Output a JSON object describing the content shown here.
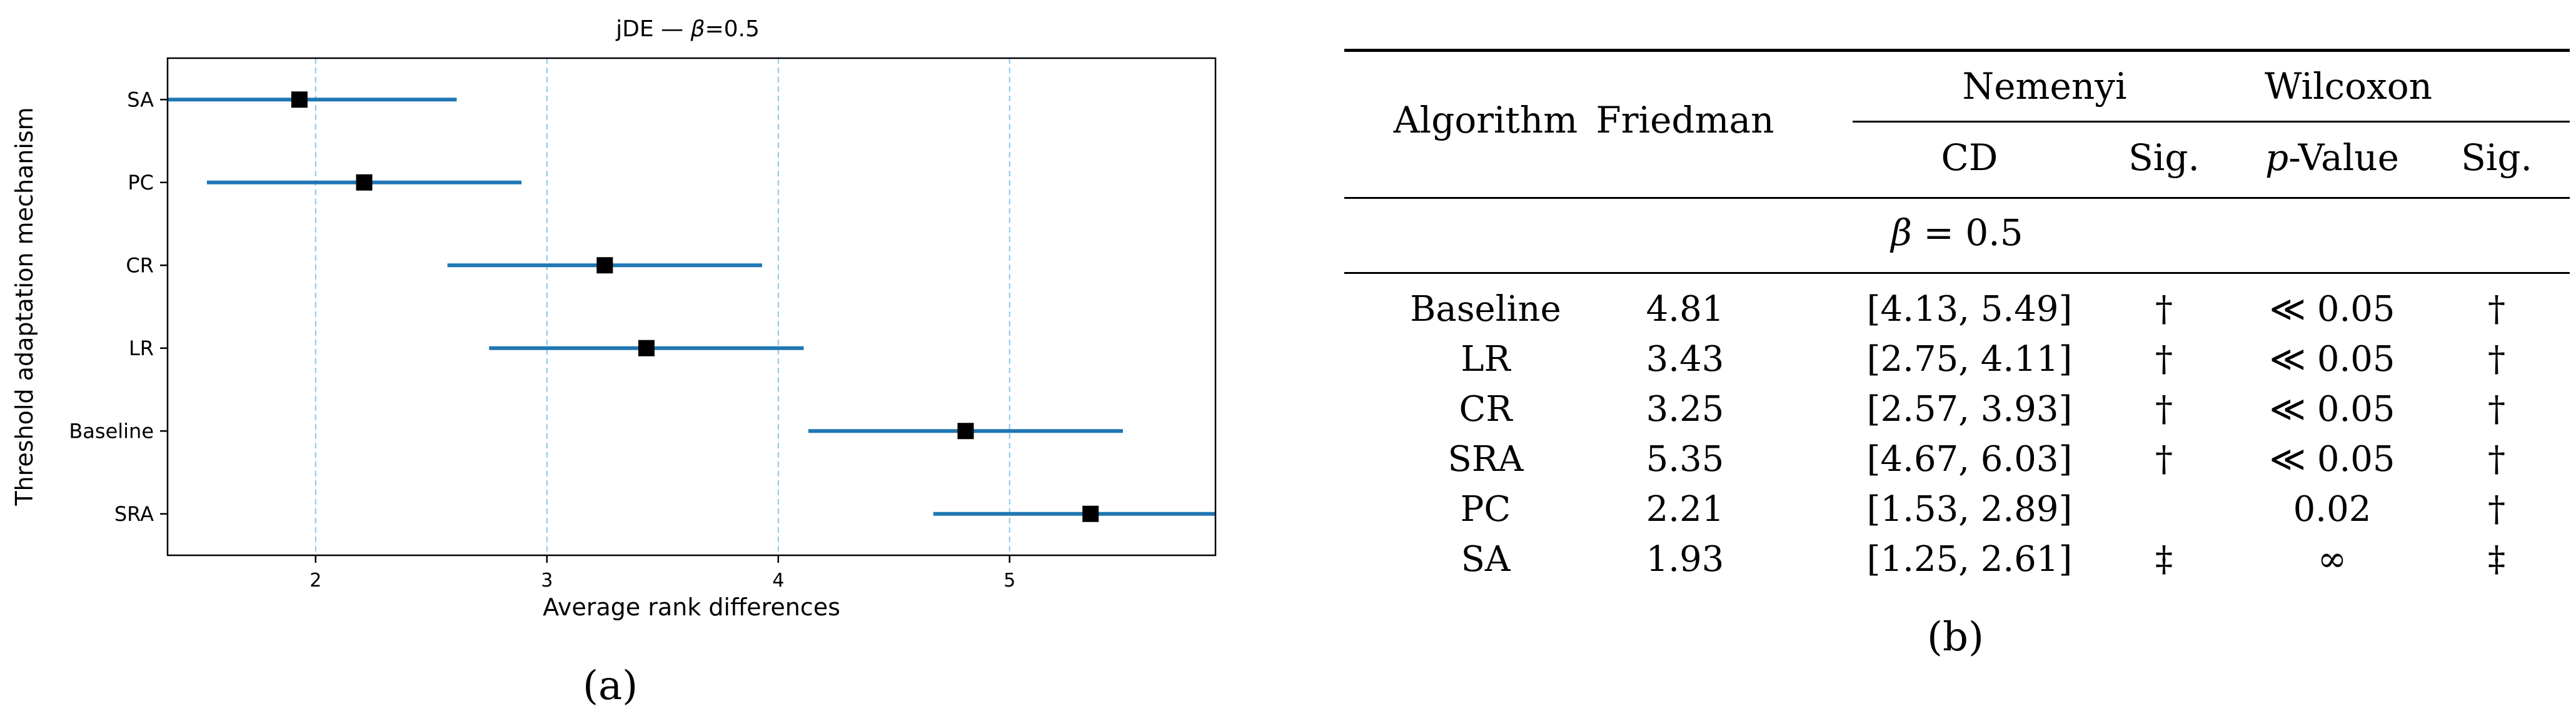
{
  "chart_data": {
    "type": "errorbar",
    "title_prefix": "jDE — ",
    "title_beta": "β",
    "title_suffix": "=0.5",
    "xlabel": "Average rank differences",
    "ylabel": "Threshold adaptation mechanism",
    "xlim": [
      1.36,
      5.89
    ],
    "x_ticks": [
      "2",
      "3",
      "4",
      "5"
    ],
    "x_tick_values": [
      2,
      3,
      4,
      5
    ],
    "grid": "vertical dashed",
    "bar_color": "#1f77b4",
    "marker_color": "#000000",
    "categories": [
      "SA",
      "PC",
      "CR",
      "LR",
      "Baseline",
      "SRA"
    ],
    "points": [
      {
        "label": "SA",
        "value": 1.93,
        "low": 1.25,
        "high": 2.61
      },
      {
        "label": "PC",
        "value": 2.21,
        "low": 1.53,
        "high": 2.89
      },
      {
        "label": "CR",
        "value": 3.25,
        "low": 2.57,
        "high": 3.93
      },
      {
        "label": "LR",
        "value": 3.43,
        "low": 2.75,
        "high": 4.11
      },
      {
        "label": "Baseline",
        "value": 4.81,
        "low": 4.13,
        "high": 5.49
      },
      {
        "label": "SRA",
        "value": 5.35,
        "low": 4.67,
        "high": 6.03
      }
    ]
  },
  "panel_a": "(a)",
  "panel_b": "(b)",
  "table": {
    "headers": {
      "algorithm": "Algorithm",
      "friedman": "Friedman",
      "nemenyi": "Nemenyi",
      "wilcoxon": "Wilcoxon",
      "cd": "CD",
      "sig1": "Sig.",
      "pvalue_p": "p",
      "pvalue_rest": "-Value",
      "sig2": "Sig."
    },
    "group_beta": "β",
    "group_rest": " = 0.5",
    "rows": [
      {
        "algorithm": "Baseline",
        "friedman": "4.81",
        "cd": "[4.13, 5.49]",
        "sig1": "†",
        "pvalue": "≪ 0.05",
        "sig2": "†"
      },
      {
        "algorithm": "LR",
        "friedman": "3.43",
        "cd": "[2.75, 4.11]",
        "sig1": "†",
        "pvalue": "≪ 0.05",
        "sig2": "†"
      },
      {
        "algorithm": "CR",
        "friedman": "3.25",
        "cd": "[2.57, 3.93]",
        "sig1": "†",
        "pvalue": "≪ 0.05",
        "sig2": "†"
      },
      {
        "algorithm": "SRA",
        "friedman": "5.35",
        "cd": "[4.67, 6.03]",
        "sig1": "†",
        "pvalue": "≪ 0.05",
        "sig2": "†"
      },
      {
        "algorithm": "PC",
        "friedman": "2.21",
        "cd": "[1.53, 2.89]",
        "sig1": "",
        "pvalue": "0.02",
        "sig2": "†"
      },
      {
        "algorithm": "SA",
        "friedman": "1.93",
        "cd": "[1.25, 2.61]",
        "sig1": "‡",
        "pvalue": "∞",
        "sig2": "‡"
      }
    ]
  }
}
